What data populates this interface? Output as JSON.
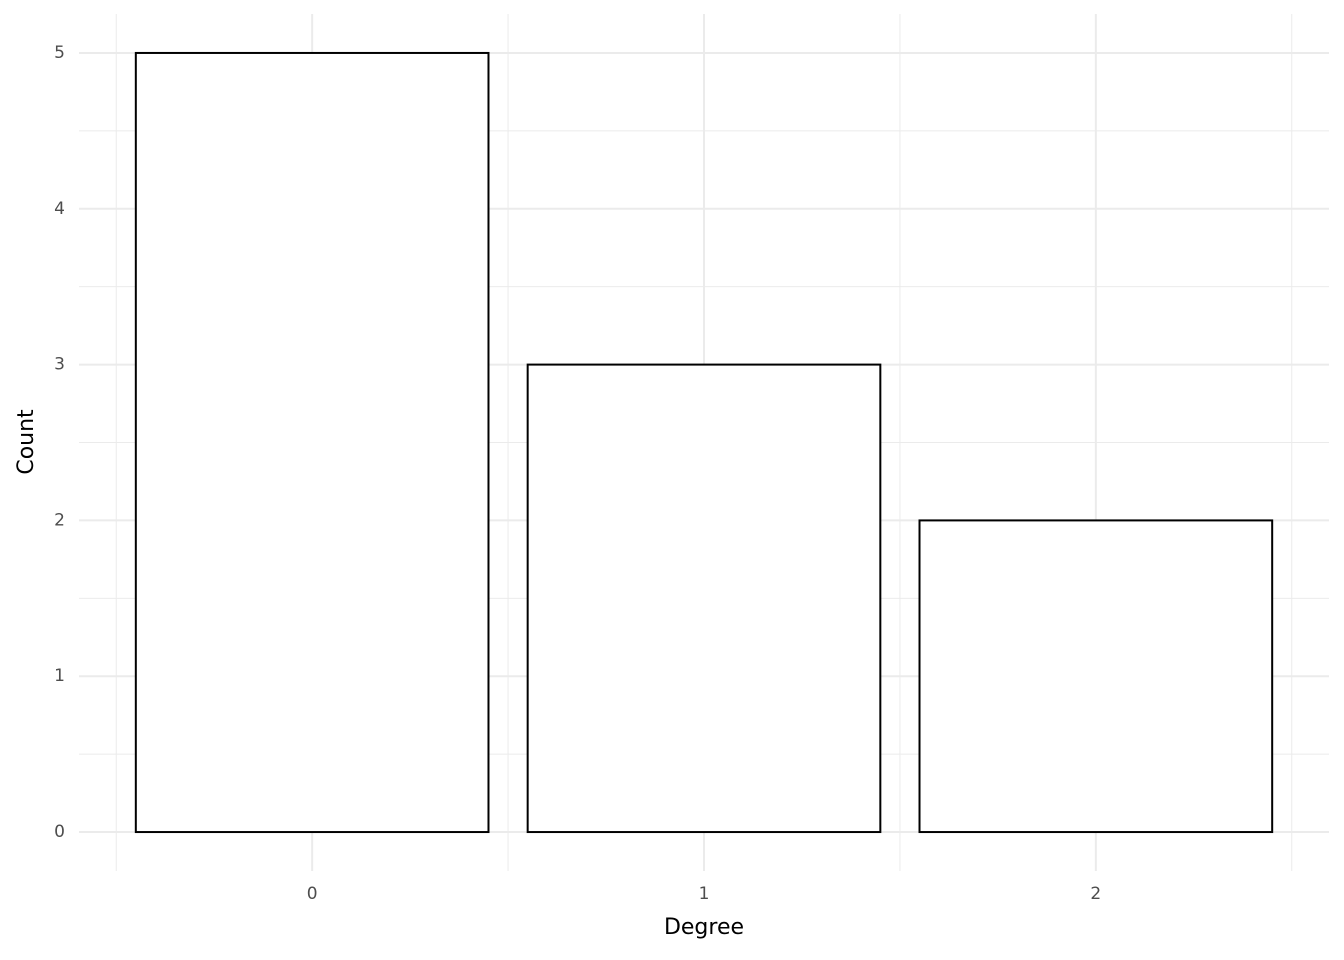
{
  "chart_data": {
    "type": "bar",
    "x_label": "Degree",
    "y_label": "Count",
    "x": [
      0,
      1,
      2
    ],
    "values": [
      5,
      3,
      2
    ],
    "color": "#ffffff",
    "edge_color": "#000000",
    "xlim": [
      -0.595,
      2.595
    ],
    "xticks": [
      0,
      1,
      2
    ],
    "ylim": [
      -0.25,
      5.25
    ],
    "yticks": [
      0,
      1,
      2,
      3,
      4,
      5
    ],
    "grid": true
  }
}
